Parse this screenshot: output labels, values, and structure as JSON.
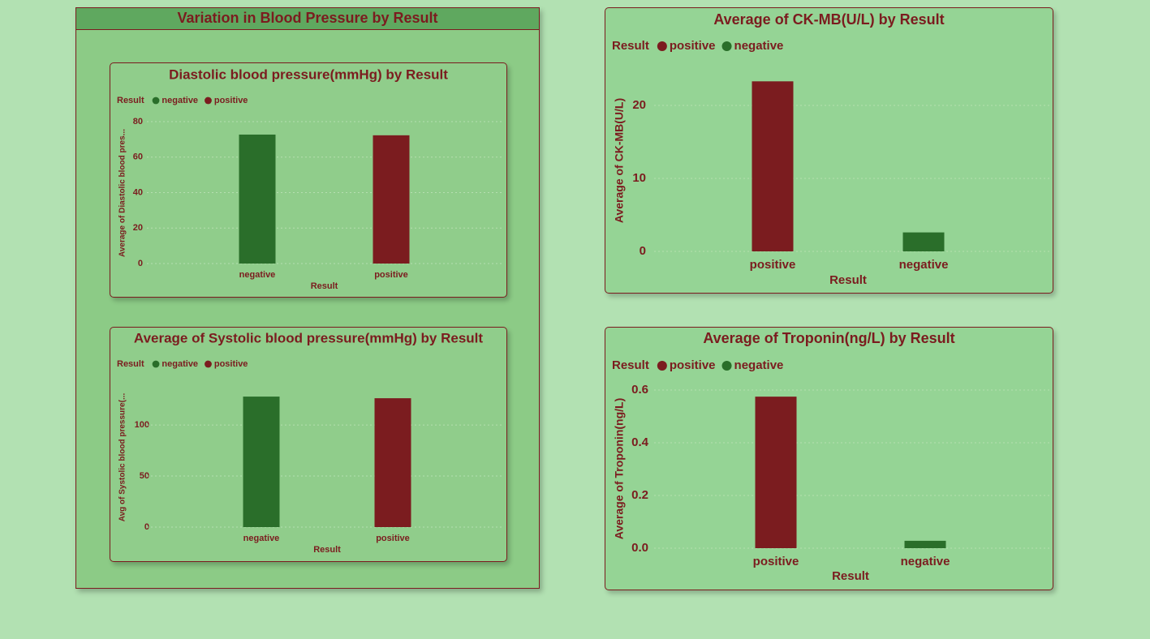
{
  "group_title": "Variation in Blood Pressure by Result",
  "chart_data": [
    {
      "type": "bar",
      "title": "Diastolic blood pressure(mmHg) by Result",
      "legend_title": "Result",
      "categories": [
        "negative",
        "positive"
      ],
      "x_label": "Result",
      "y_label": "Average of Diastolic blood pres...",
      "series": [
        {
          "name": "negative",
          "color": "#2a6e2a",
          "values": [
            72.7,
            null
          ]
        },
        {
          "name": "positive",
          "color": "#7b1c1f",
          "values": [
            null,
            72.3
          ]
        }
      ],
      "ylim": [
        0,
        80
      ],
      "yticks": [
        0,
        20,
        40,
        60,
        80
      ],
      "grid": true
    },
    {
      "type": "bar",
      "title": "Average of Systolic blood pressure(mmHg) by Result",
      "legend_title": "Result",
      "categories": [
        "negative",
        "positive"
      ],
      "x_label": "Result",
      "y_label": "Avg of Systolic blood pressure(...",
      "series": [
        {
          "name": "negative",
          "color": "#2a6e2a",
          "values": [
            127.8,
            null
          ]
        },
        {
          "name": "positive",
          "color": "#7b1c1f",
          "values": [
            null,
            126.2
          ]
        }
      ],
      "ylim": [
        0,
        135
      ],
      "yticks": [
        0,
        50,
        100
      ],
      "grid": true
    },
    {
      "type": "bar",
      "title": "Average of CK-MB(U/L) by Result",
      "legend_title": "Result",
      "categories": [
        "positive",
        "negative"
      ],
      "x_label": "Result",
      "y_label": "Average of CK-MB(U/L)",
      "series": [
        {
          "name": "positive",
          "color": "#7b1c1f",
          "values": [
            23.3,
            null
          ]
        },
        {
          "name": "negative",
          "color": "#2a6e2a",
          "values": [
            null,
            2.6
          ]
        }
      ],
      "ylim": [
        0,
        25
      ],
      "yticks": [
        0,
        10,
        20
      ],
      "grid": true
    },
    {
      "type": "bar",
      "title": "Average of Troponin(ng/L) by Result",
      "legend_title": "Result",
      "categories": [
        "positive",
        "negative"
      ],
      "x_label": "Result",
      "y_label": "Average of Troponin(ng/L)",
      "series": [
        {
          "name": "positive",
          "color": "#7b1c1f",
          "values": [
            0.575,
            null
          ]
        },
        {
          "name": "negative",
          "color": "#2a6e2a",
          "values": [
            null,
            0.028
          ]
        }
      ],
      "ylim": [
        0,
        0.6
      ],
      "yticks": [
        {
          "value": 0,
          "label": "0.0"
        },
        0.2,
        0.4,
        0.6
      ],
      "grid": true
    }
  ]
}
